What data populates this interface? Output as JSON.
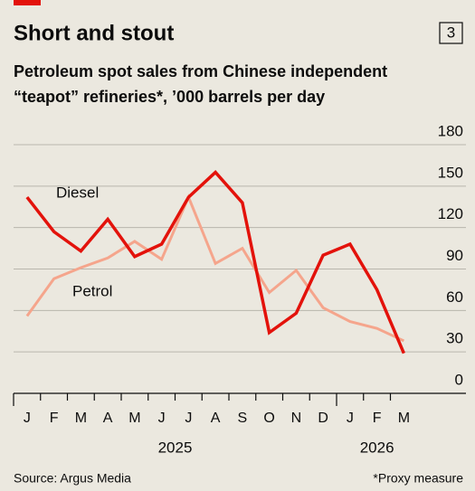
{
  "chart_data": {
    "type": "line",
    "title": "Short and stout",
    "chart_number": "3",
    "subtitle": [
      "Petroleum spot sales from Chinese independent",
      "“teapot” refineries*, ’000 barrels per day"
    ],
    "categories": [
      "J",
      "F",
      "M",
      "A",
      "M",
      "J",
      "J",
      "A",
      "S",
      "O",
      "N",
      "D",
      "J",
      "F",
      "M"
    ],
    "years": [
      "2025",
      "2026"
    ],
    "series": [
      {
        "name": "Diesel",
        "color": "#e3120b",
        "values": [
          142,
          117,
          103,
          126,
          99,
          108,
          142,
          160,
          138,
          44,
          58,
          100,
          108,
          75,
          29
        ]
      },
      {
        "name": "Petrol",
        "color": "#f5a58c",
        "values": [
          56,
          83,
          91,
          98,
          110,
          97,
          142,
          94,
          105,
          73,
          89,
          62,
          52,
          47,
          38
        ]
      }
    ],
    "ylim": [
      0,
      180
    ],
    "yticks": [
      0,
      30,
      60,
      90,
      120,
      150,
      180
    ],
    "grid": true,
    "source": "Source: Argus Media",
    "note": "*Proxy measure"
  }
}
